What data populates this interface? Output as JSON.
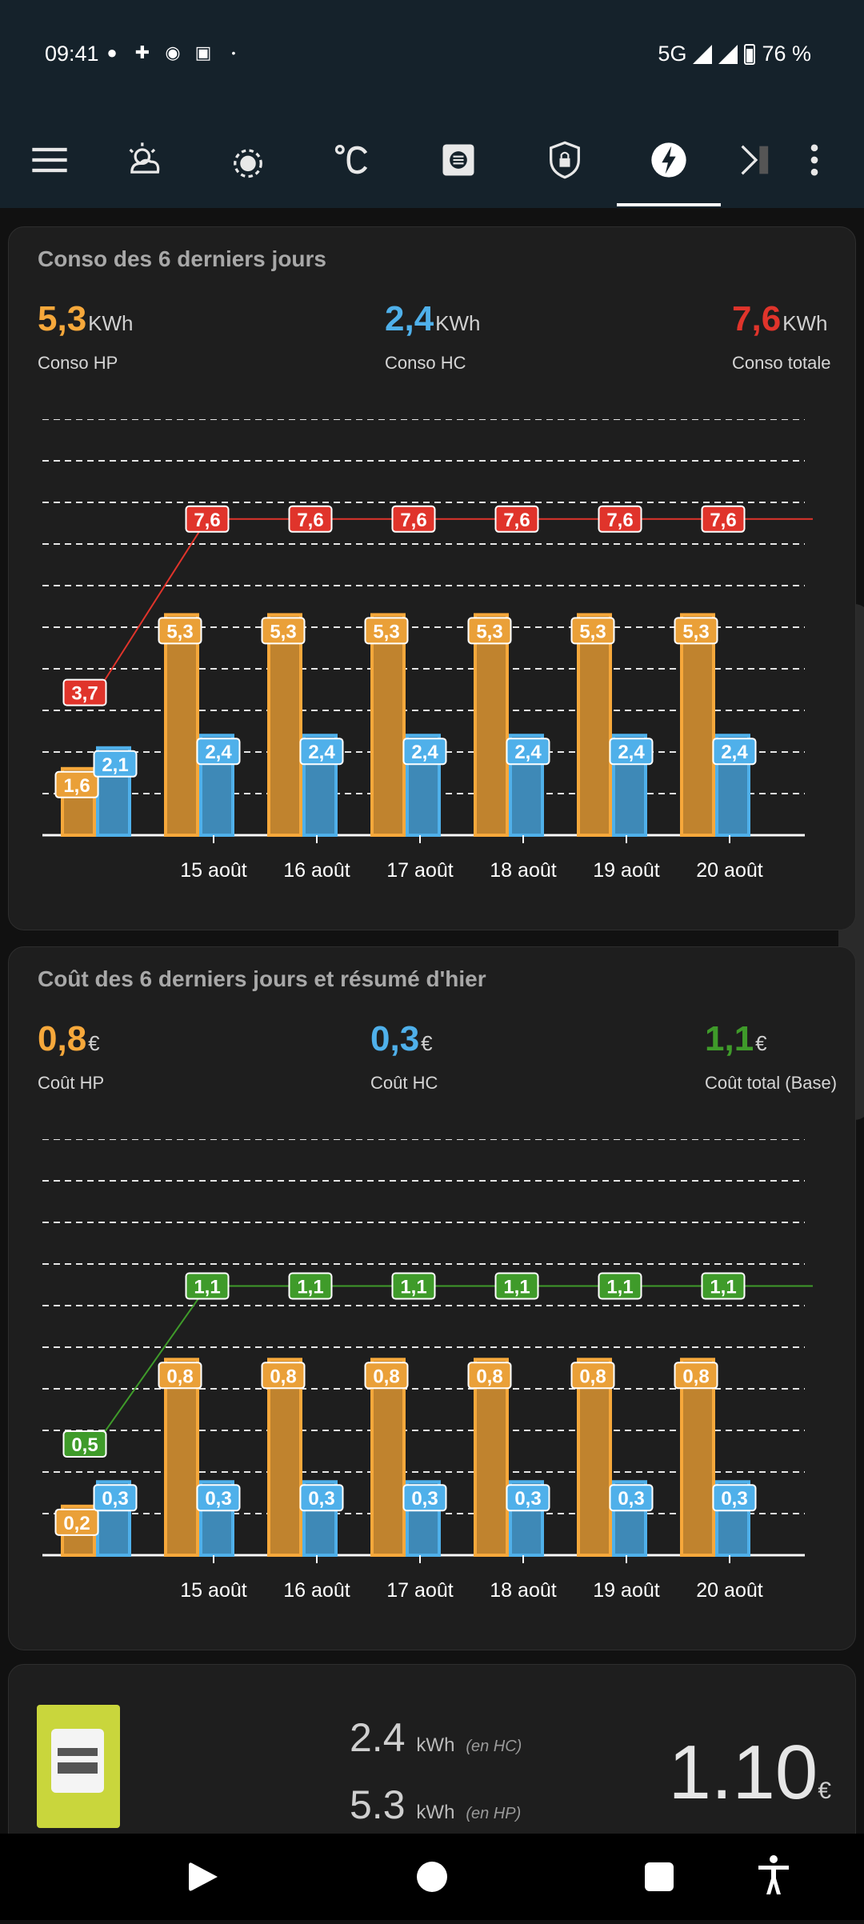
{
  "status_bar": {
    "time": "09:41",
    "network": "5G",
    "battery": "76 %"
  },
  "toolbar": {
    "icons": [
      "menu-icon",
      "weather-icon",
      "sun-settings-icon",
      "temperature-icon",
      "list-icon",
      "security-icon",
      "energy-icon",
      "more-tabs-icon",
      "overflow-menu-icon"
    ],
    "selected": "energy-icon"
  },
  "conso_card": {
    "title": "Conso des 6 derniers jours",
    "stats": [
      {
        "value": "5,3",
        "unit": "KWh",
        "label": "Conso HP"
      },
      {
        "value": "2,4",
        "unit": "KWh",
        "label": "Conso HC"
      },
      {
        "value": "7,6",
        "unit": "KWh",
        "label": "Conso totale"
      }
    ],
    "chart_data": {
      "type": "bar",
      "categories": [
        "",
        "15 août",
        "16 août",
        "17 août",
        "18 août",
        "19 août",
        "20 août"
      ],
      "series": [
        {
          "name": "Conso HP",
          "values": [
            1.6,
            5.3,
            5.3,
            5.3,
            5.3,
            5.3,
            5.3
          ],
          "labels": [
            "1,6",
            "5,3",
            "5,3",
            "5,3",
            "5,3",
            "5,3",
            "5,3"
          ],
          "color": "#f6a83b"
        },
        {
          "name": "Conso HC",
          "values": [
            2.1,
            2.4,
            2.4,
            2.4,
            2.4,
            2.4,
            2.4
          ],
          "labels": [
            "2,1",
            "2,4",
            "2,4",
            "2,4",
            "2,4",
            "2,4",
            "2,4"
          ],
          "color": "#4fb0ea"
        },
        {
          "name": "Conso totale",
          "type": "line",
          "values": [
            3.7,
            7.6,
            7.6,
            7.6,
            7.6,
            7.6,
            7.6
          ],
          "labels": [
            "3,7",
            "7,6",
            "7,6",
            "7,6",
            "7,6",
            "7,6",
            "7,6"
          ],
          "color": "#e0342b"
        }
      ],
      "ylim": [
        0,
        10
      ],
      "grid": true
    }
  },
  "cout_card": {
    "title": "Coût des 6 derniers jours et résumé d'hier",
    "stats": [
      {
        "value": "0,8",
        "unit": "€",
        "label": "Coût HP"
      },
      {
        "value": "0,3",
        "unit": "€",
        "label": "Coût HC"
      },
      {
        "value": "1,1",
        "unit": "€",
        "label": "Coût total (Base)"
      }
    ],
    "chart_data": {
      "type": "bar",
      "categories": [
        "",
        "15 août",
        "16 août",
        "17 août",
        "18 août",
        "19 août",
        "20 août"
      ],
      "series": [
        {
          "name": "Coût HP",
          "values": [
            0.2,
            0.8,
            0.8,
            0.8,
            0.8,
            0.8,
            0.8
          ],
          "labels": [
            "0,2",
            "0,8",
            "0,8",
            "0,8",
            "0,8",
            "0,8",
            "0,8"
          ],
          "color": "#f6a83b"
        },
        {
          "name": "Coût HC",
          "values": [
            0.3,
            0.3,
            0.3,
            0.3,
            0.3,
            0.3,
            0.3
          ],
          "labels": [
            "0,3",
            "0,3",
            "0,3",
            "0,3",
            "0,3",
            "0,3",
            "0,3"
          ],
          "color": "#4fb0ea"
        },
        {
          "name": "Coût total (Base)",
          "type": "line",
          "values": [
            0.5,
            1.1,
            1.1,
            1.1,
            1.1,
            1.1,
            1.1
          ],
          "labels": [
            "0,5",
            "1,1",
            "1,1",
            "1,1",
            "1,1",
            "1,1",
            "1,1"
          ],
          "color": "#3f9b2a"
        }
      ],
      "ylim": [
        0,
        1.7
      ],
      "grid": true
    }
  },
  "summary": {
    "hc_value": "2.4",
    "hc_unit": "kWh",
    "hc_tag": "(en HC)",
    "hp_value": "5.3",
    "hp_unit": "kWh",
    "hp_tag": "(en HP)",
    "total": "1.10",
    "total_unit": "€"
  }
}
